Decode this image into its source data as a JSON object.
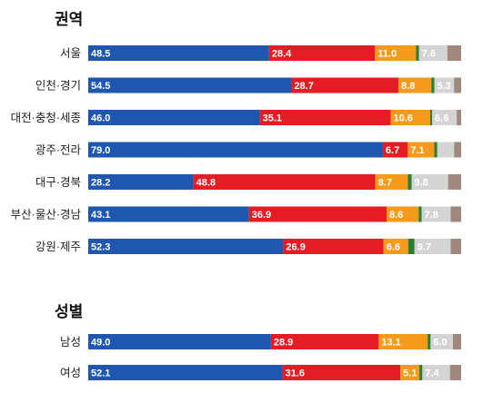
{
  "chart_data": {
    "type": "bar",
    "stacked": true,
    "orientation": "horizontal",
    "xlim": [
      0,
      100
    ],
    "colors": [
      "#1e56b0",
      "#e51c23",
      "#f59a1b",
      "#2e7d32",
      "#d4d4d4",
      "#a1887f"
    ],
    "groups": [
      {
        "title": "권역",
        "rows": [
          {
            "label": "서울",
            "values": [
              48.5,
              28.4,
              11.0,
              0.8,
              7.6,
              3.7
            ],
            "labels": [
              "48.5",
              "28.4",
              "11.0",
              "",
              "7.6",
              ""
            ]
          },
          {
            "label": "인천·경기",
            "values": [
              54.5,
              28.7,
              8.8,
              0.8,
              5.3,
              1.9
            ],
            "labels": [
              "54.5",
              "28.7",
              "8.8",
              "",
              "5.3",
              ""
            ]
          },
          {
            "label": "대전·충청·세종",
            "values": [
              46.0,
              35.1,
              10.6,
              0.5,
              6.6,
              1.2
            ],
            "labels": [
              "46.0",
              "35.1",
              "10.6",
              "",
              "6.6",
              ""
            ]
          },
          {
            "label": "광주·전라",
            "values": [
              79.0,
              6.7,
              7.1,
              0.8,
              4.5,
              1.9
            ],
            "labels": [
              "79.0",
              "6.7",
              "7.1",
              "",
              "",
              ""
            ]
          },
          {
            "label": "대구·경북",
            "values": [
              28.2,
              48.8,
              8.7,
              1.0,
              9.8,
              3.5
            ],
            "labels": [
              "28.2",
              "48.8",
              "8.7",
              "",
              "9.8",
              ""
            ]
          },
          {
            "label": "부산·울산·경남",
            "values": [
              43.1,
              36.9,
              8.6,
              0.8,
              7.8,
              2.8
            ],
            "labels": [
              "43.1",
              "36.9",
              "8.6",
              "",
              "7.8",
              ""
            ]
          },
          {
            "label": "강원·제주",
            "values": [
              52.3,
              26.9,
              6.6,
              1.7,
              9.7,
              2.8
            ],
            "labels": [
              "52.3",
              "26.9",
              "6.6",
              "",
              "9.7",
              ""
            ]
          }
        ]
      },
      {
        "title": "성별",
        "rows": [
          {
            "label": "남성",
            "values": [
              49.0,
              28.9,
              13.1,
              0.8,
              6.0,
              2.2
            ],
            "labels": [
              "49.0",
              "28.9",
              "13.1",
              "",
              "6.0",
              ""
            ]
          },
          {
            "label": "여성",
            "values": [
              52.1,
              31.6,
              5.1,
              0.8,
              7.4,
              3.0
            ],
            "labels": [
              "52.1",
              "31.6",
              "5.1",
              "",
              "7.4",
              ""
            ]
          }
        ]
      }
    ]
  }
}
